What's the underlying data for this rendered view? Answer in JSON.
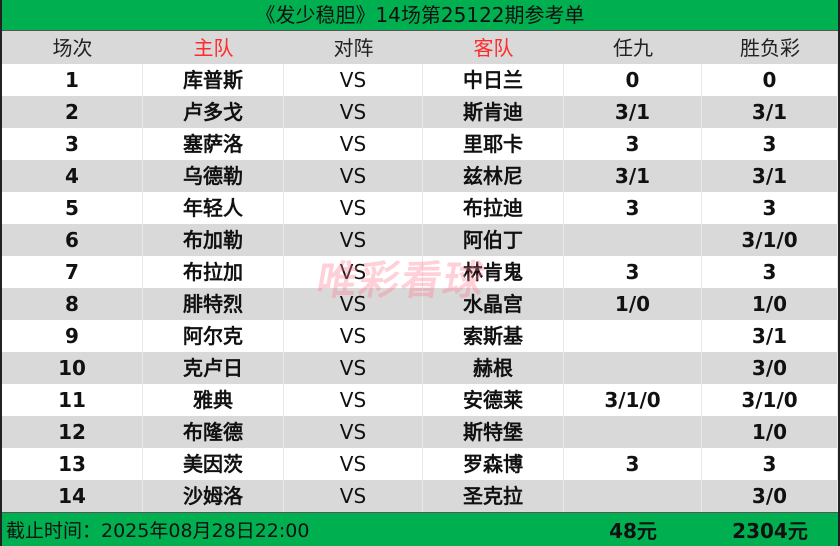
{
  "title": "《发少稳胆》14场第25122期参考单",
  "headers": [
    "场次",
    "主队",
    "对阵",
    "客队",
    "任九",
    "胜负彩"
  ],
  "accent_color": "#00b050",
  "highlight_color": "#ff2b2b",
  "rows": [
    [
      "1",
      "库普斯",
      "VS",
      "中日兰",
      "0",
      "0"
    ],
    [
      "2",
      "卢多戈",
      "VS",
      "斯肯迪",
      "3/1",
      "3/1"
    ],
    [
      "3",
      "塞萨洛",
      "VS",
      "里耶卡",
      "3",
      "3"
    ],
    [
      "4",
      "乌德勒",
      "VS",
      "兹林尼",
      "3/1",
      "3/1"
    ],
    [
      "5",
      "年轻人",
      "VS",
      "布拉迪",
      "3",
      "3"
    ],
    [
      "6",
      "布加勒",
      "VS",
      "阿伯丁",
      "",
      "3/1/0"
    ],
    [
      "7",
      "布拉加",
      "VS",
      "林肯鬼",
      "3",
      "3"
    ],
    [
      "8",
      "腓特烈",
      "VS",
      "水晶宫",
      "1/0",
      "1/0"
    ],
    [
      "9",
      "阿尔克",
      "VS",
      "索斯基",
      "",
      "3/1"
    ],
    [
      "10",
      "克卢日",
      "VS",
      "赫根",
      "",
      "3/0"
    ],
    [
      "11",
      "雅典",
      "VS",
      "安德莱",
      "3/1/0",
      "3/1/0"
    ],
    [
      "12",
      "布隆德",
      "VS",
      "斯特堡",
      "",
      "1/0"
    ],
    [
      "13",
      "美因茨",
      "VS",
      "罗森博",
      "3",
      "3"
    ],
    [
      "14",
      "沙姆洛",
      "VS",
      "圣克拉",
      "",
      "3/0"
    ]
  ],
  "footer": {
    "deadline": "截止时间：2025年08月28日22:00",
    "renjiu_cost": "48元",
    "shengfu_cost": "2304元"
  },
  "watermark": "唯彩看球"
}
